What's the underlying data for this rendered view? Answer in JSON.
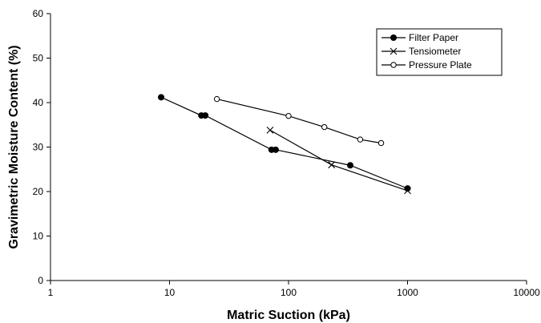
{
  "chart_data": {
    "type": "line",
    "title": "",
    "xlabel": "Matric Suction (kPa)",
    "ylabel": "Gravimetric Moisture Content (%)",
    "x_scale": "log",
    "xlim": [
      1,
      10000
    ],
    "ylim": [
      0,
      60
    ],
    "x_ticks": [
      "1",
      "10",
      "100",
      "1000",
      "10000"
    ],
    "y_ticks": [
      "0",
      "10",
      "20",
      "30",
      "40",
      "50",
      "60"
    ],
    "grid": false,
    "legend_position": "top-right",
    "series": [
      {
        "name": "Filter Paper",
        "marker": "filled-circle",
        "x": [
          8.5,
          18.5,
          20,
          72,
          78,
          330,
          1000
        ],
        "y": [
          41.2,
          37.1,
          37.1,
          29.4,
          29.4,
          25.9,
          20.7
        ]
      },
      {
        "name": "Tensiometer",
        "marker": "x",
        "x": [
          70,
          230,
          1000
        ],
        "y": [
          33.8,
          26.0,
          20.2
        ]
      },
      {
        "name": "Pressure Plate",
        "marker": "open-circle",
        "x": [
          25,
          100,
          200,
          400,
          600
        ],
        "y": [
          40.8,
          37.0,
          34.5,
          31.7,
          30.9
        ]
      }
    ]
  }
}
